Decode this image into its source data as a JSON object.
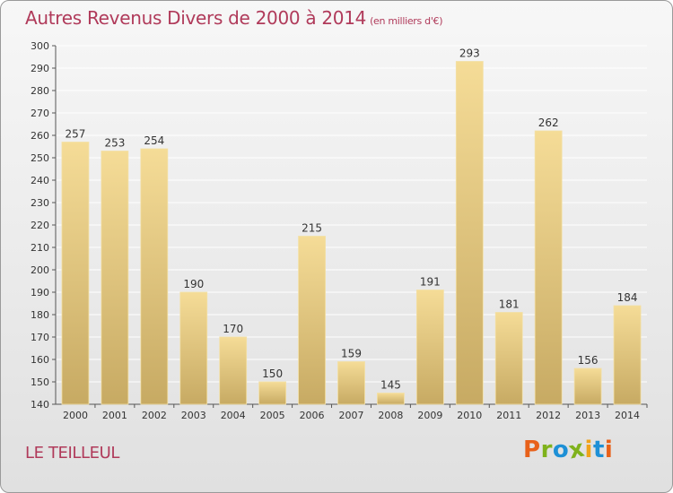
{
  "title": "Autres Revenus Divers de 2000 à 2014",
  "subtitle": "(en milliers d'€)",
  "city": "LE TEILLEUL",
  "brand": "Proxiti",
  "colors": {
    "title": "#b03a5a",
    "bar_light": "#f5dc97",
    "bar_dark": "#c7aa63",
    "gridline": "#ffffff",
    "logo_letters": [
      "#e8611a",
      "#7fb21c",
      "#1e90d6",
      "#7fb21c",
      "#f0a21a",
      "#1e90d6",
      "#e8611a"
    ]
  },
  "chart_data": {
    "type": "bar",
    "categories": [
      "2000",
      "2001",
      "2002",
      "2003",
      "2004",
      "2005",
      "2006",
      "2007",
      "2008",
      "2009",
      "2010",
      "2011",
      "2012",
      "2013",
      "2014"
    ],
    "values": [
      257,
      253,
      254,
      190,
      170,
      150,
      215,
      159,
      145,
      191,
      293,
      181,
      262,
      156,
      184
    ],
    "data_labels": [
      "257",
      "253",
      "254",
      "190",
      "170",
      "150",
      "215",
      "159",
      "145",
      "191",
      "293",
      "181",
      "262",
      "156",
      "184"
    ],
    "ylim": [
      140,
      300
    ],
    "yticks": [
      "140",
      "150",
      "160",
      "170",
      "180",
      "190",
      "200",
      "210",
      "220",
      "230",
      "240",
      "250",
      "260",
      "270",
      "280",
      "290",
      "300"
    ],
    "grid": true
  }
}
